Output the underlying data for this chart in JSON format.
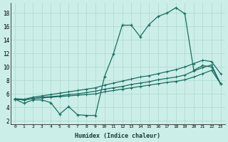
{
  "xlabel": "Humidex (Indice chaleur)",
  "bg_color": "#cceee8",
  "line_color": "#1a6e62",
  "grid_color": "#aad8d0",
  "x_ticks": [
    0,
    1,
    2,
    3,
    4,
    5,
    6,
    7,
    8,
    9,
    10,
    11,
    12,
    13,
    14,
    15,
    16,
    17,
    18,
    19,
    20,
    21,
    22,
    23
  ],
  "y_ticks": [
    2,
    4,
    6,
    8,
    10,
    12,
    14,
    16,
    18
  ],
  "xlim": [
    -0.5,
    23.5
  ],
  "ylim": [
    1.5,
    19.5
  ],
  "line1_y": [
    5.2,
    4.6,
    5.1,
    5.1,
    4.7,
    3.0,
    4.1,
    2.9,
    2.8,
    2.8,
    8.5,
    11.9,
    16.2,
    16.2,
    14.5,
    16.3,
    17.5,
    18.0,
    18.8,
    17.9,
    9.5,
    10.2,
    10.0,
    7.5
  ],
  "line2_y": [
    5.2,
    5.1,
    5.3,
    5.4,
    5.5,
    5.6,
    5.7,
    5.8,
    5.9,
    6.0,
    6.3,
    6.5,
    6.7,
    6.9,
    7.1,
    7.3,
    7.5,
    7.7,
    7.85,
    8.1,
    8.5,
    9.0,
    9.5,
    7.5
  ],
  "line3_y": [
    5.2,
    5.1,
    5.3,
    5.5,
    5.6,
    5.7,
    5.9,
    6.0,
    6.2,
    6.4,
    6.7,
    6.9,
    7.1,
    7.4,
    7.6,
    7.8,
    8.1,
    8.3,
    8.5,
    8.8,
    9.4,
    9.9,
    10.3,
    7.5
  ],
  "line4_y": [
    5.3,
    5.2,
    5.5,
    5.7,
    5.9,
    6.1,
    6.3,
    6.5,
    6.7,
    6.9,
    7.3,
    7.6,
    7.9,
    8.2,
    8.5,
    8.7,
    9.0,
    9.3,
    9.6,
    10.0,
    10.5,
    11.0,
    10.8,
    9.0
  ]
}
